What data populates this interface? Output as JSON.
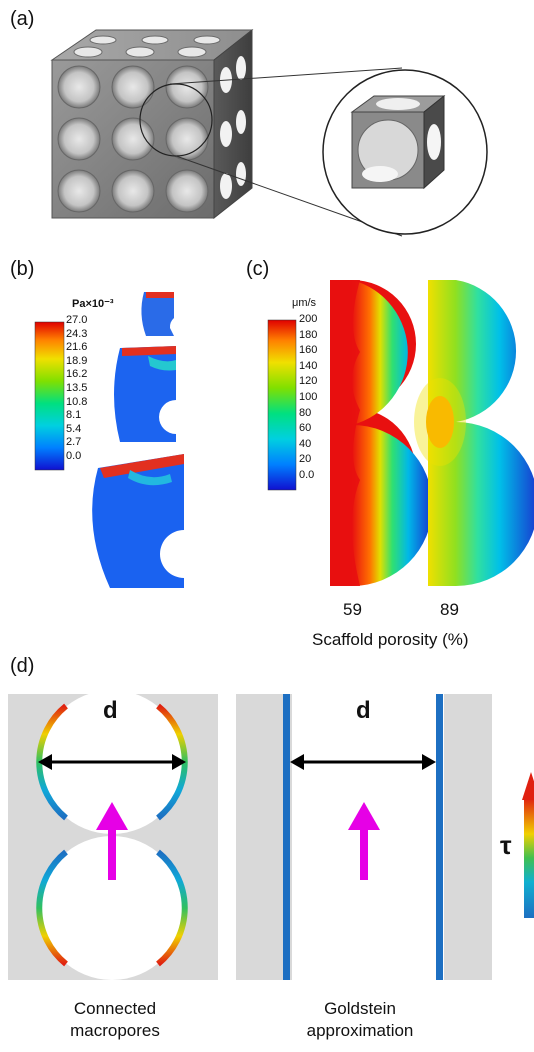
{
  "panels": {
    "a": {
      "letter": "(a)"
    },
    "b": {
      "letter": "(b)",
      "unit": "Pa×10⁻³",
      "scale": [
        "27.0",
        "24.3",
        "21.6",
        "18.9",
        "16.2",
        "13.5",
        "10.8",
        "8.1",
        "5.4",
        "2.7",
        "0.0"
      ]
    },
    "c": {
      "letter": "(c)",
      "unit": "μm/s",
      "scale": [
        "200",
        "180",
        "160",
        "140",
        "120",
        "100",
        "80",
        "60",
        "40",
        "20",
        "0.0"
      ],
      "porosities": [
        "59",
        "89"
      ],
      "xlabel": "Scaffold porosity (%)"
    },
    "d": {
      "letter": "(d)",
      "left_symbol": "d",
      "right_symbol": "d",
      "tau": "τ",
      "left_caption": [
        "Connected",
        "macropores"
      ],
      "right_caption": [
        "Goldstein",
        "approximation"
      ]
    }
  },
  "colors": {
    "cube": "#8a8a8a",
    "gray_bg": "#d9d9d9",
    "flow_arrow": "#e600e6",
    "wall_blue": "#1e6fc0"
  }
}
